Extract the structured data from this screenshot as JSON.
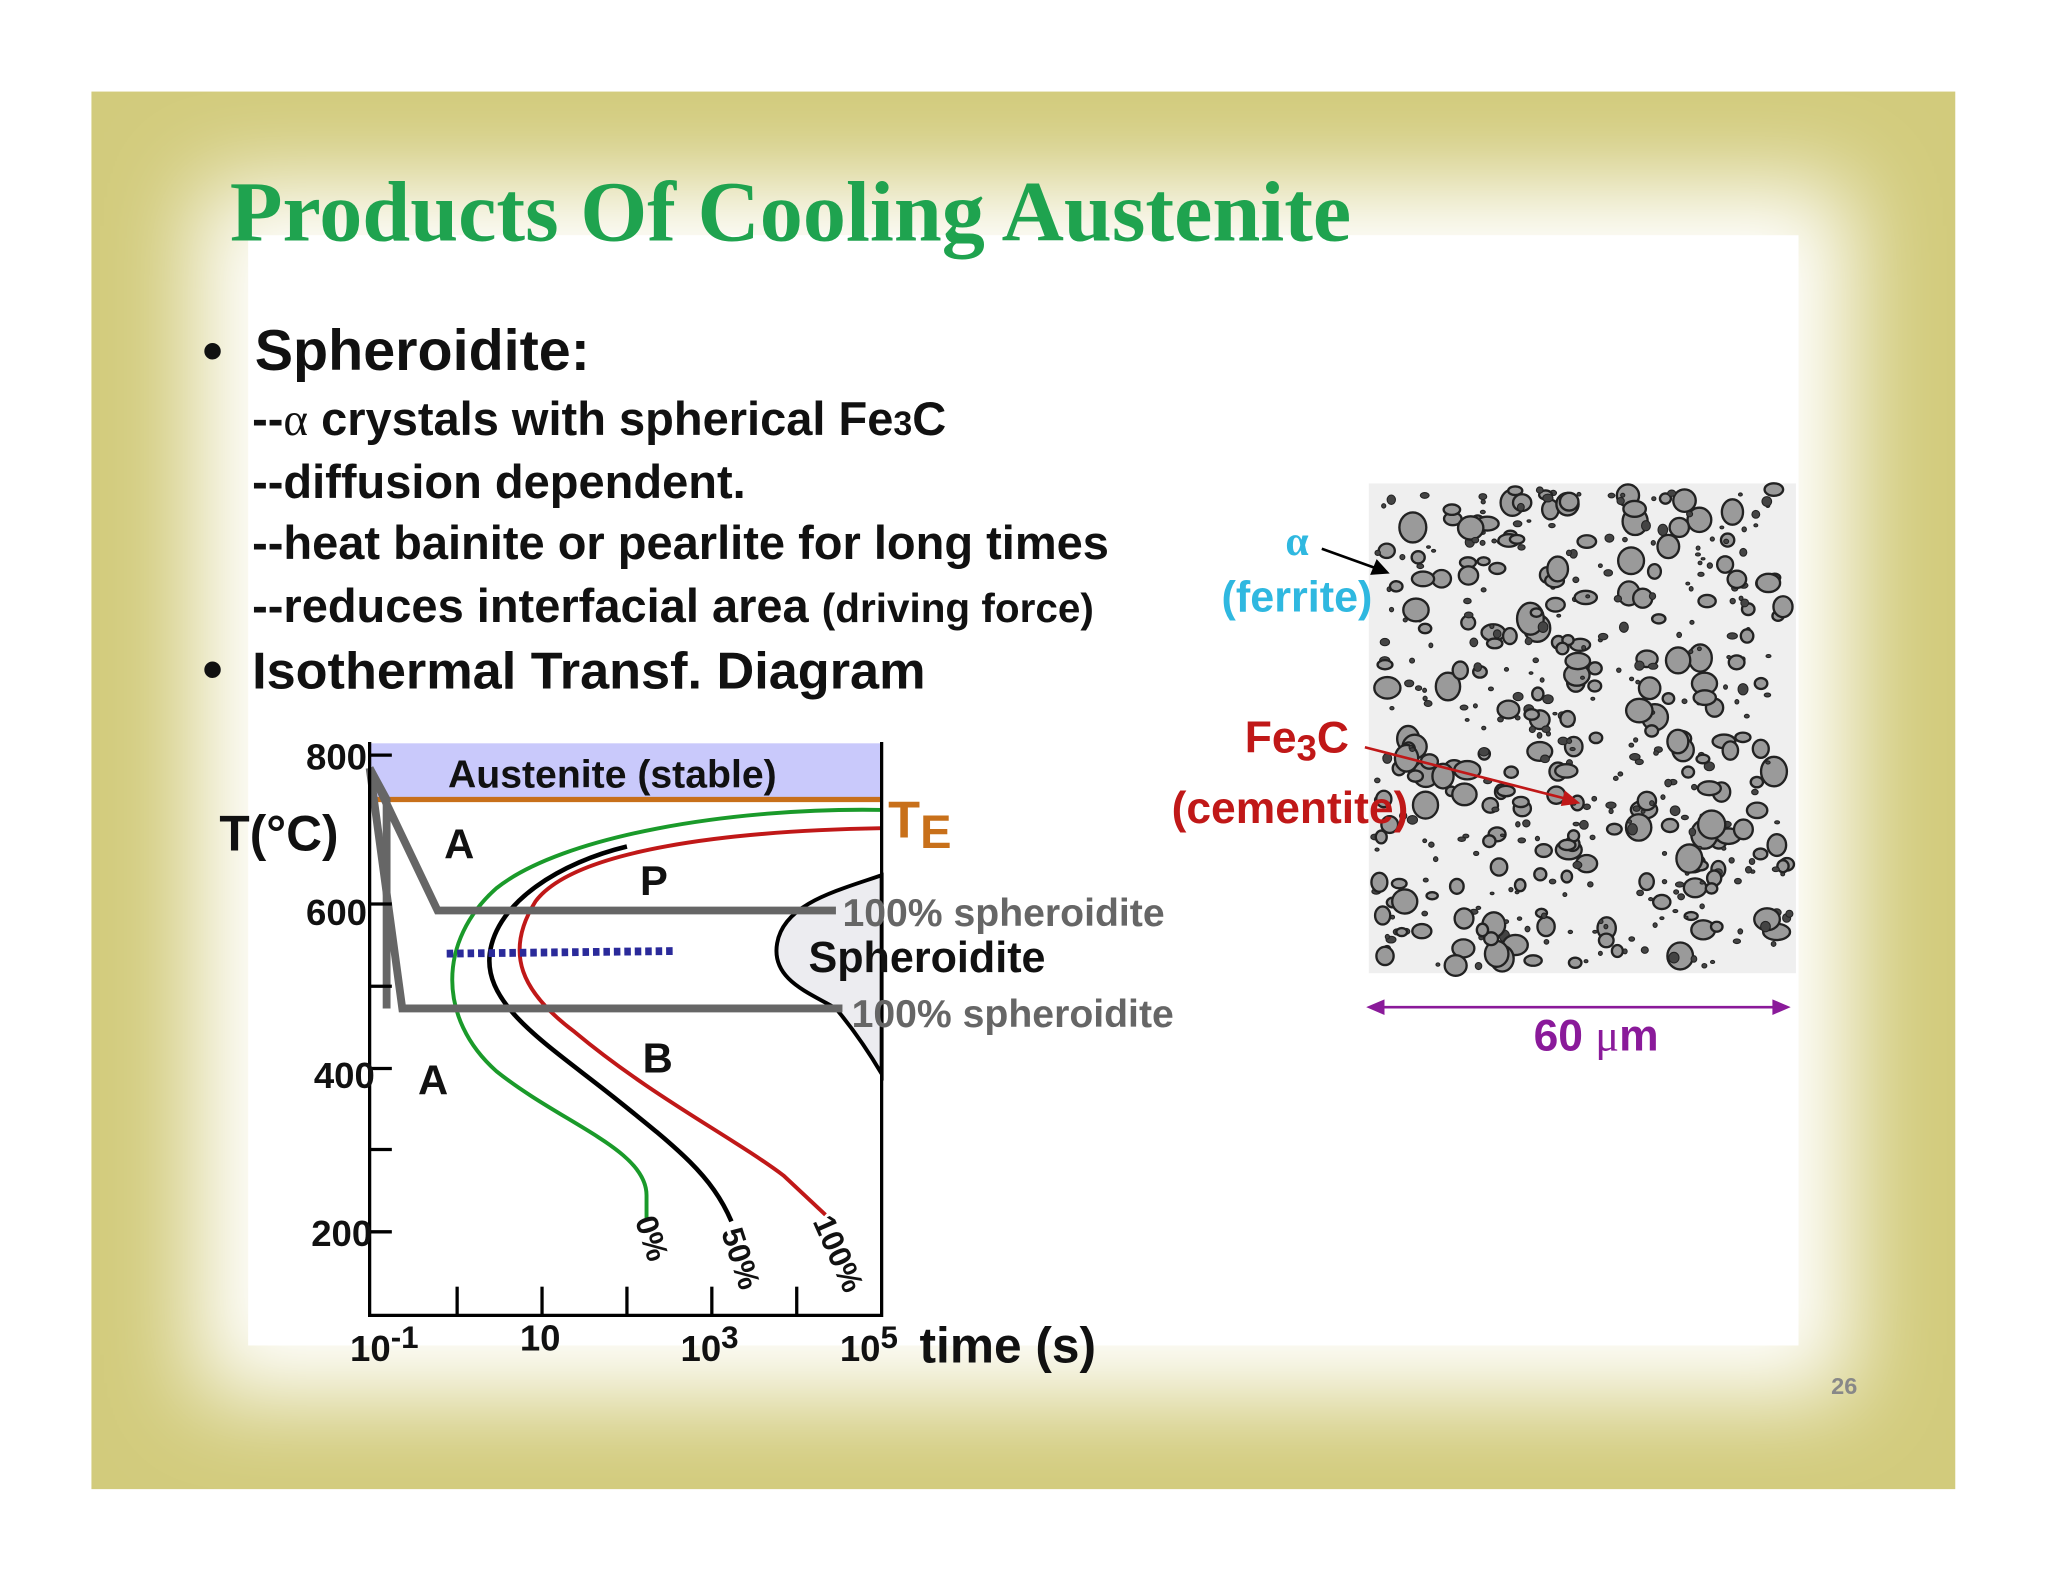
{
  "title": "Products Of Cooling Austenite",
  "bullets": [
    {
      "text": "Spheroidite:",
      "items": [
        [
          "--",
          "α",
          " crystals with spherical Fe",
          "3",
          "C"
        ],
        [
          "--diffusion dependent."
        ],
        [
          "--heat bainite or pearlite for long times"
        ],
        [
          "--reduces interfacial area ",
          "(driving force)"
        ]
      ]
    },
    {
      "text": "Isothermal Transf. Diagram"
    }
  ],
  "diagram": {
    "y_axis_label": "T(°C)",
    "y_tick_labels": [
      "800",
      "600",
      "400",
      "200"
    ],
    "x_tick_labels": [
      [
        "10",
        "-1"
      ],
      [
        "10"
      ],
      [
        "10",
        "3"
      ],
      [
        "10",
        "5"
      ]
    ],
    "x_axis_label": "time (s)",
    "austenite_label": "Austenite (stable)",
    "te_label": [
      "T",
      "E"
    ],
    "region_labels": [
      "A",
      "P",
      "A",
      "B"
    ],
    "spheroidite_label": "Spheroidite",
    "spheroidite_lines": [
      "100% spheroidite",
      "100% spheroidite"
    ],
    "curve_labels": [
      "0%",
      "50%",
      "100%"
    ]
  },
  "micrograph": {
    "alpha": "α",
    "ferrite": "(ferrite)",
    "fe3c": [
      "Fe",
      "3",
      "C"
    ],
    "cementite": "(cementite)",
    "scale": [
      "60 ",
      "μ",
      "m"
    ]
  },
  "page_number": "26"
}
